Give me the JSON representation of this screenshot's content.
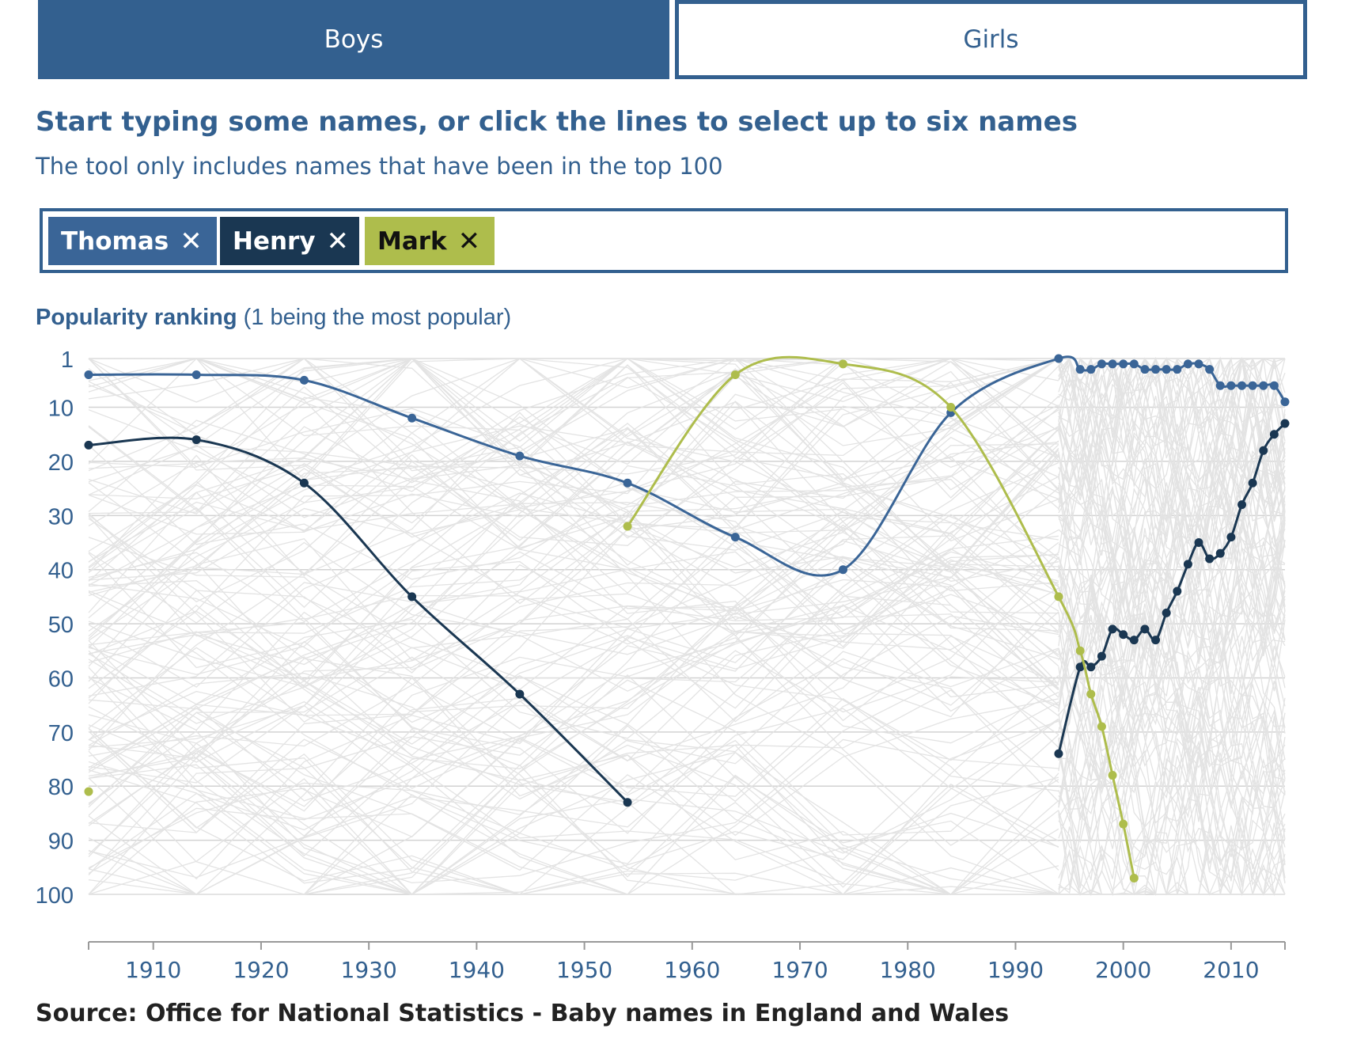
{
  "tabs": [
    {
      "label": "Boys",
      "active": true
    },
    {
      "label": "Girls",
      "active": false
    }
  ],
  "prompt": {
    "title": "Start typing some names, or click the lines to select up to six names",
    "subtitle": "The tool only includes names that have been in the top 100"
  },
  "selected_names": [
    {
      "label": "Thomas",
      "remove_icon": "close-icon",
      "color": "#3a6597"
    },
    {
      "label": "Henry",
      "remove_icon": "close-icon",
      "color": "#1a3752"
    },
    {
      "label": "Mark",
      "remove_icon": "close-icon",
      "color": "#aebd4c"
    }
  ],
  "remove_glyph": "✕",
  "search": {
    "placeholder": ""
  },
  "source": "Source: Office for National Statistics - Baby names in England and Wales",
  "chart_data": {
    "type": "line",
    "title_bold": "Popularity ranking",
    "title_rest": " (1 being the most popular)",
    "xlabel": "",
    "ylabel": "",
    "xlim": [
      1904,
      2015
    ],
    "ylim": [
      1,
      100
    ],
    "y_inverted": true,
    "y_ticks": [
      1,
      10,
      20,
      30,
      40,
      50,
      60,
      70,
      80,
      90,
      100
    ],
    "x_ticks": [
      1910,
      1920,
      1930,
      1940,
      1950,
      1960,
      1970,
      1980,
      1990,
      2000,
      2010
    ],
    "grid": true,
    "background_lines_color": "#e3e3e3",
    "series": [
      {
        "name": "Thomas",
        "color": "#3a6597",
        "segments": [
          [
            [
              1904,
              4
            ],
            [
              1914,
              4
            ],
            [
              1924,
              5
            ],
            [
              1934,
              12
            ],
            [
              1944,
              19
            ],
            [
              1954,
              24
            ],
            [
              1964,
              34
            ],
            [
              1974,
              40
            ],
            [
              1984,
              11
            ],
            [
              1994,
              1
            ],
            [
              1996,
              3
            ],
            [
              1997,
              3
            ],
            [
              1998,
              2
            ],
            [
              1999,
              2
            ],
            [
              2000,
              2
            ],
            [
              2001,
              2
            ],
            [
              2002,
              3
            ],
            [
              2003,
              3
            ],
            [
              2004,
              3
            ],
            [
              2005,
              3
            ],
            [
              2006,
              2
            ],
            [
              2007,
              2
            ],
            [
              2008,
              3
            ],
            [
              2009,
              6
            ],
            [
              2010,
              6
            ],
            [
              2011,
              6
            ],
            [
              2012,
              6
            ],
            [
              2013,
              6
            ],
            [
              2014,
              6
            ],
            [
              2015,
              9
            ]
          ]
        ]
      },
      {
        "name": "Henry",
        "color": "#1a3752",
        "segments": [
          [
            [
              1904,
              17
            ],
            [
              1914,
              16
            ],
            [
              1924,
              24
            ],
            [
              1934,
              45
            ],
            [
              1944,
              63
            ],
            [
              1954,
              83
            ]
          ],
          [
            [
              1994,
              74
            ],
            [
              1996,
              58
            ],
            [
              1997,
              58
            ],
            [
              1998,
              56
            ],
            [
              1999,
              51
            ],
            [
              2000,
              52
            ],
            [
              2001,
              53
            ],
            [
              2002,
              51
            ],
            [
              2003,
              53
            ],
            [
              2004,
              48
            ],
            [
              2005,
              44
            ],
            [
              2006,
              39
            ],
            [
              2007,
              35
            ],
            [
              2008,
              38
            ],
            [
              2009,
              37
            ],
            [
              2010,
              34
            ],
            [
              2011,
              28
            ],
            [
              2012,
              24
            ],
            [
              2013,
              18
            ],
            [
              2014,
              15
            ],
            [
              2015,
              13
            ]
          ]
        ]
      },
      {
        "name": "Mark",
        "color": "#aebd4c",
        "segments": [
          [
            [
              1904,
              81
            ]
          ],
          [
            [
              1954,
              32
            ],
            [
              1964,
              4
            ],
            [
              1974,
              2
            ],
            [
              1984,
              10
            ],
            [
              1994,
              45
            ],
            [
              1996,
              55
            ],
            [
              1997,
              63
            ],
            [
              1998,
              69
            ],
            [
              1999,
              78
            ],
            [
              2000,
              87
            ],
            [
              2001,
              97
            ]
          ]
        ]
      }
    ]
  }
}
